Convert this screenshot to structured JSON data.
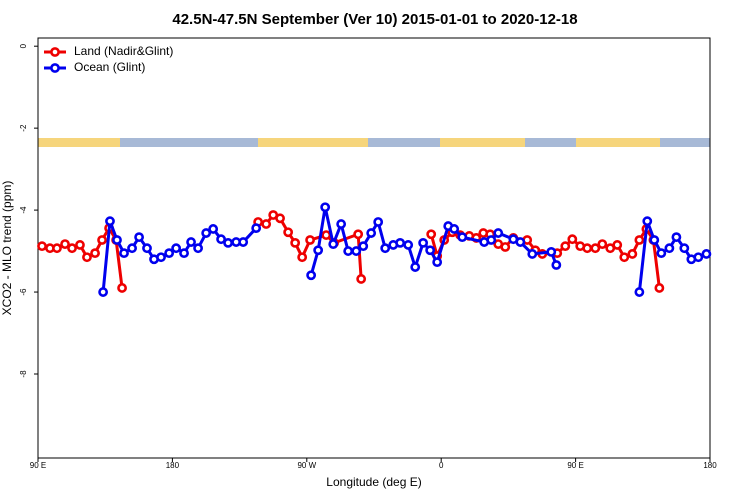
{
  "chart_data": {
    "type": "line",
    "title": "42.5N-47.5N September (Ver 10)   2015-01-01 to 2020-12-18",
    "x_label": "Longitude (deg E)",
    "y_label": "XCO2 - MLO trend (ppm)",
    "xlim": [
      90,
      540
    ],
    "ylim": [
      -10.05,
      0.2
    ],
    "xticks": [
      {
        "value": 90,
        "label": "90 E"
      },
      180,
      {
        "value": 270,
        "label": "90 W"
      },
      {
        "value": 360,
        "label": "0"
      },
      {
        "value": 450,
        "label": "90 E"
      },
      {
        "value": 540,
        "label": "180"
      }
    ],
    "yticks": [
      0,
      -2,
      -4,
      -6,
      -8
    ],
    "legend": "top-left",
    "series": [
      {
        "name": "Land (Nadir&Glint)",
        "color": "#ee0000",
        "x": [
          92.7,
          98.0,
          102.7,
          108.1,
          112.8,
          118.1,
          122.8,
          128.2,
          132.9,
          137.6,
          142.3,
          146.3,
          null,
          237.4,
          242.8,
          247.5,
          252.1,
          257.5,
          262.2,
          266.9,
          272.2,
          283.0,
          288.3,
          304.4,
          306.4,
          null,
          353.3,
          357.3,
          362.0,
          367.4,
          372.7,
          378.8,
          383.5,
          388.2,
          392.8,
          398.2,
          402.9,
          408.3,
          417.6,
          423.0,
          427.7,
          437.7,
          443.1,
          447.8,
          453.1,
          457.8,
          463.2,
          467.9,
          473.2,
          477.9,
          482.6,
          488.0,
          492.7,
          497.4,
          502.1,
          506.1
        ],
        "values": [
          -4.88,
          -4.93,
          -4.93,
          -4.83,
          -4.93,
          -4.85,
          -5.15,
          -5.05,
          -4.73,
          -4.44,
          -4.73,
          -5.9,
          null,
          -4.29,
          -4.34,
          -4.12,
          -4.2,
          -4.54,
          -4.8,
          -5.15,
          -4.73,
          -4.61,
          -4.8,
          -4.59,
          -5.68,
          null,
          -4.59,
          -5.12,
          -4.73,
          -4.54,
          -4.61,
          -4.63,
          -4.68,
          -4.56,
          -4.59,
          -4.83,
          -4.9,
          -4.68,
          -4.73,
          -4.98,
          -5.07,
          -5.05,
          -4.88,
          -4.71,
          -4.88,
          -4.93,
          -4.93,
          -4.83,
          -4.93,
          -4.85,
          -5.15,
          -5.07,
          -4.73,
          -4.46,
          -4.73,
          -5.9
        ]
      },
      {
        "name": "Ocean (Glint)",
        "color": "#0000ee",
        "x": [
          133.6,
          138.2,
          142.9,
          147.6,
          153.0,
          157.7,
          163.0,
          167.7,
          172.4,
          177.8,
          182.5,
          187.8,
          192.5,
          197.2,
          202.6,
          207.3,
          212.6,
          217.3,
          222.7,
          227.4,
          236.1,
          null,
          272.9,
          277.6,
          282.3,
          287.7,
          293.0,
          297.7,
          303.1,
          307.8,
          313.1,
          317.8,
          322.5,
          327.9,
          332.5,
          337.9,
          342.6,
          347.9,
          352.6,
          357.3,
          364.7,
          368.7,
          374.1,
          388.8,
          393.5,
          398.2,
          408.3,
          413.0,
          421.0,
          433.7,
          437.1,
          null,
          492.7,
          498.0,
          502.7,
          507.4,
          512.8,
          517.5,
          522.8,
          527.5,
          532.2,
          537.6
        ],
        "values": [
          -6.0,
          -4.27,
          -4.73,
          -5.05,
          -4.93,
          -4.66,
          -4.93,
          -5.2,
          -5.15,
          -5.05,
          -4.93,
          -5.05,
          -4.78,
          -4.93,
          -4.56,
          -4.46,
          -4.71,
          -4.8,
          -4.78,
          -4.78,
          -4.44,
          null,
          -5.59,
          -4.98,
          -3.93,
          -4.83,
          -4.34,
          -5.0,
          -5.0,
          -4.88,
          -4.56,
          -4.29,
          -4.93,
          -4.85,
          -4.8,
          -4.85,
          -5.39,
          -4.8,
          -4.98,
          -5.27,
          -4.39,
          -4.46,
          -4.66,
          -4.78,
          -4.73,
          -4.56,
          -4.71,
          -4.78,
          -5.07,
          -5.02,
          -5.34,
          null,
          -6.0,
          -4.27,
          -4.73,
          -5.05,
          -4.93,
          -4.66,
          -4.93,
          -5.2,
          -5.15,
          -5.07
        ]
      }
    ]
  }
}
